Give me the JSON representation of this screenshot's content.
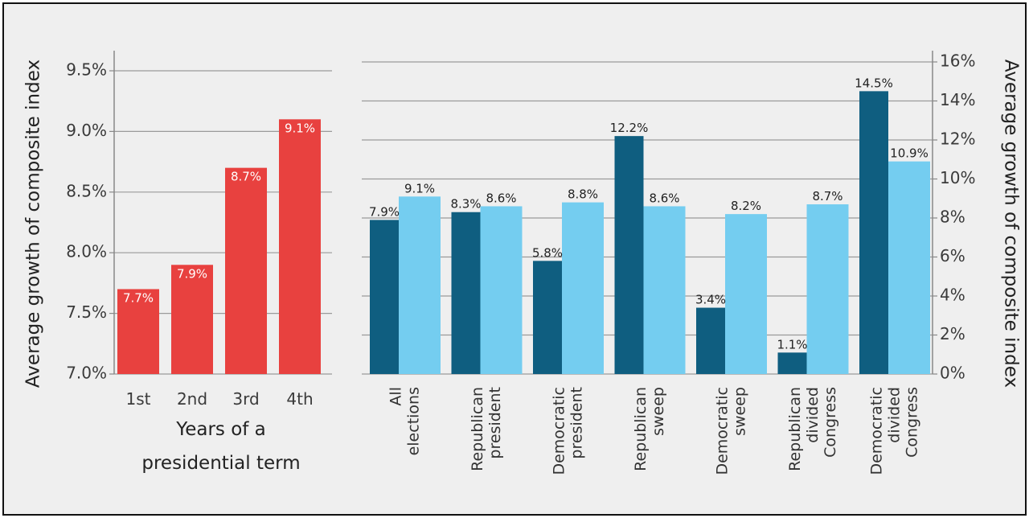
{
  "chart_data": [
    {
      "type": "bar",
      "categories": [
        "1st",
        "2nd",
        "3rd",
        "4th"
      ],
      "values": [
        7.7,
        7.9,
        8.7,
        9.1
      ],
      "value_labels": [
        "7.7%",
        "7.9%",
        "8.7%",
        "9.1%"
      ],
      "xlabel": "Years of a presidential term",
      "xlabel_lines": [
        "Years of a",
        "presidential term"
      ],
      "ylabel": "Average growth of composite index",
      "ylim": [
        7.0,
        9.5
      ],
      "yticks": [
        "7.0%",
        "7.5%",
        "8.0%",
        "8.5%",
        "9.0%",
        "9.5%"
      ],
      "grid": true,
      "color": "#e8413f"
    },
    {
      "type": "bar",
      "categories": [
        [
          "All",
          "elections"
        ],
        [
          "Republican",
          "president"
        ],
        [
          "Democratic",
          "president"
        ],
        [
          "Republican",
          "sweep"
        ],
        [
          "Democratic",
          "sweep"
        ],
        [
          "Republican",
          "divided",
          "Congress"
        ],
        [
          "Democratic",
          "divided",
          "Congress"
        ]
      ],
      "series": [
        {
          "values": [
            7.9,
            8.3,
            5.8,
            12.2,
            3.4,
            1.1,
            14.5
          ],
          "labels": [
            "7.9%",
            "8.3%",
            "5.8%",
            "12.2%",
            "3.4%",
            "1.1%",
            "14.5%"
          ],
          "color": "#0f5e80"
        },
        {
          "values": [
            9.1,
            8.6,
            8.8,
            8.6,
            8.2,
            8.7,
            10.9
          ],
          "labels": [
            "9.1%",
            "8.6%",
            "8.8%",
            "8.6%",
            "8.2%",
            "8.7%",
            "10.9%"
          ],
          "color": "#74cdf0"
        }
      ],
      "ylabel": "Average growth of composite index",
      "ylim": [
        0,
        16
      ],
      "yticks": [
        "0%",
        "2%",
        "4%",
        "6%",
        "8%",
        "10%",
        "12%",
        "14%",
        "16%"
      ],
      "yaxis_side": "right",
      "grid": true
    }
  ]
}
